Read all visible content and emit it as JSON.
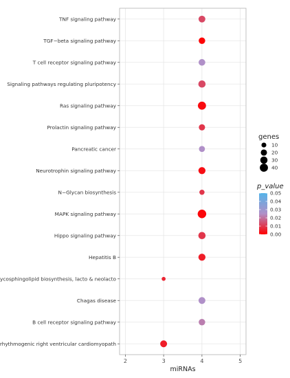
{
  "chart_data": {
    "type": "scatter",
    "title": "",
    "xlabel": "miRNAs",
    "ylabel": "",
    "xlim": [
      1.85,
      5.15
    ],
    "x_ticks": [
      "2",
      "3",
      "4",
      "5"
    ],
    "grid": true,
    "legend_placement": "right",
    "categories": [
      "TNF signaling pathway",
      "TGF−beta signaling pathway",
      "T cell receptor signaling pathway",
      "Signaling pathways regulating pluripotency",
      "Ras signaling pathway",
      "Prolactin signaling pathway",
      "Pancreatic cancer",
      "Neurotrophin signaling pathway",
      "N−Glycan biosynthesis",
      "MAPK signaling pathway",
      "Hippo signaling pathway",
      "Hepatitis B",
      "Glycosphingolipid biosynthesis, lacto & neolacto",
      "Chagas disease",
      "B cell receptor signaling pathway",
      "Arrhythmogenic right ventricular cardiomyopath"
    ],
    "points": [
      {
        "category": "TNF signaling pathway",
        "miRNAs": 4,
        "genes": 25,
        "p_value": 0.02
      },
      {
        "category": "TGF−beta signaling pathway",
        "miRNAs": 4,
        "genes": 22,
        "p_value": 0.001
      },
      {
        "category": "T cell receptor signaling pathway",
        "miRNAs": 4,
        "genes": 24,
        "p_value": 0.04
      },
      {
        "category": "Signaling pathways regulating pluripotency",
        "miRNAs": 4,
        "genes": 30,
        "p_value": 0.02
      },
      {
        "category": "Ras signaling pathway",
        "miRNAs": 4,
        "genes": 40,
        "p_value": 0.003
      },
      {
        "category": "Prolactin signaling pathway",
        "miRNAs": 4,
        "genes": 20,
        "p_value": 0.015
      },
      {
        "category": "Pancreatic cancer",
        "miRNAs": 4,
        "genes": 18,
        "p_value": 0.04
      },
      {
        "category": "Neurotrophin signaling pathway",
        "miRNAs": 4,
        "genes": 28,
        "p_value": 0.004
      },
      {
        "category": "N−Glycan biosynthesis",
        "miRNAs": 4,
        "genes": 12,
        "p_value": 0.015
      },
      {
        "category": "MAPK signaling pathway",
        "miRNAs": 4,
        "genes": 45,
        "p_value": 0.002
      },
      {
        "category": "Hippo signaling pathway",
        "miRNAs": 4,
        "genes": 30,
        "p_value": 0.015
      },
      {
        "category": "Hepatitis B",
        "miRNAs": 4,
        "genes": 28,
        "p_value": 0.008
      },
      {
        "category": "Glycosphingolipid biosynthesis, lacto & neolacto",
        "miRNAs": 3,
        "genes": 5,
        "p_value": 0.01
      },
      {
        "category": "Chagas disease",
        "miRNAs": 4,
        "genes": 26,
        "p_value": 0.04
      },
      {
        "category": "B cell receptor signaling pathway",
        "miRNAs": 4,
        "genes": 22,
        "p_value": 0.035
      },
      {
        "category": "Arrhythmogenic right ventricular cardiomyopath",
        "miRNAs": 3,
        "genes": 26,
        "p_value": 0.008
      }
    ],
    "size_legend": {
      "title": "genes",
      "values": [
        10,
        20,
        30,
        40
      ],
      "labels": [
        "10",
        "20",
        "30",
        "40"
      ]
    },
    "color_legend": {
      "title": "p_value",
      "range": [
        0,
        0.05
      ],
      "ticks": [
        0.05,
        0.04,
        0.03,
        0.02,
        0.01,
        0.0
      ],
      "tick_labels": [
        "0.05",
        "0.04",
        "0.03",
        "0.02",
        "0.01",
        "0.00"
      ],
      "low_color": "#ff0000",
      "mid_color": "#b090c8",
      "high_color": "#56b4e9"
    },
    "colors": {
      "grid": "#e6e6e6",
      "axis": "#b3b3b3",
      "background": "#ffffff"
    }
  }
}
